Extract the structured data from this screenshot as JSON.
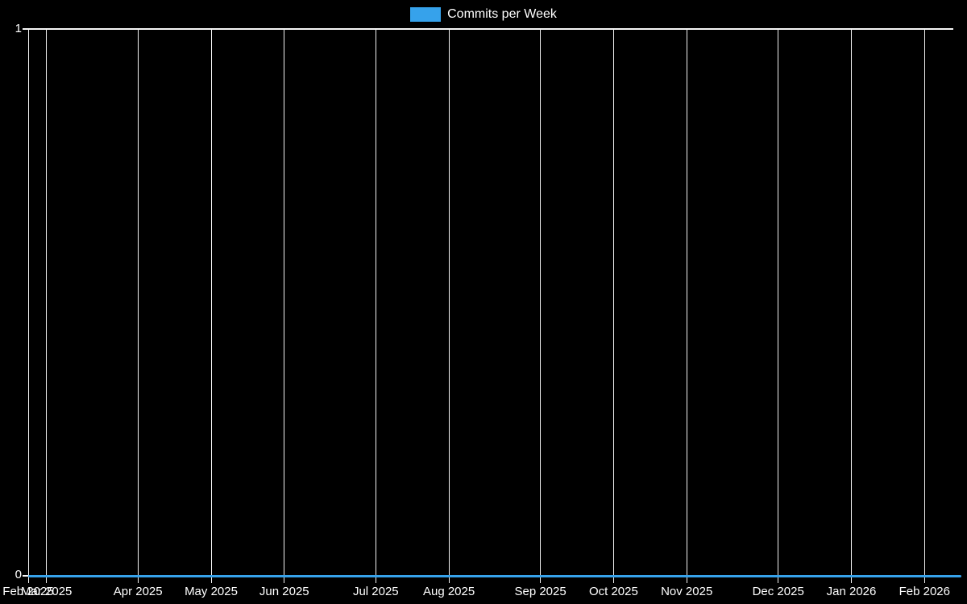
{
  "legend": {
    "items": [
      {
        "label": "Commits per Week",
        "color": "#36a2eb"
      }
    ]
  },
  "y_axis": {
    "ticks": [
      {
        "label": "1",
        "value": 1
      },
      {
        "label": "0",
        "value": 0
      }
    ]
  },
  "x_axis": {
    "ticks": [
      {
        "label": "Feb 2025",
        "week": 0
      },
      {
        "label": "Mar 2025",
        "week": 1
      },
      {
        "label": "Apr 2025",
        "week": 6
      },
      {
        "label": "May 2025",
        "week": 10
      },
      {
        "label": "Jun 2025",
        "week": 14
      },
      {
        "label": "Jul 2025",
        "week": 19
      },
      {
        "label": "Aug 2025",
        "week": 23
      },
      {
        "label": "Sep 2025",
        "week": 28
      },
      {
        "label": "Oct 2025",
        "week": 32
      },
      {
        "label": "Nov 2025",
        "week": 36
      },
      {
        "label": "Dec 2025",
        "week": 41
      },
      {
        "label": "Jan 2026",
        "week": 45
      },
      {
        "label": "Feb 2026",
        "week": 49
      }
    ]
  },
  "chart_data": {
    "type": "line",
    "title": "Commits per Week",
    "x_unit": "week",
    "x_range": [
      "Feb 2025",
      "Feb 2026"
    ],
    "x_tick_labels": [
      "Feb 2025",
      "Mar 2025",
      "Apr 2025",
      "May 2025",
      "Jun 2025",
      "Jul 2025",
      "Aug 2025",
      "Sep 2025",
      "Oct 2025",
      "Nov 2025",
      "Dec 2025",
      "Jan 2026",
      "Feb 2026"
    ],
    "ylim": [
      0,
      1
    ],
    "y_tick_labels": [
      "0",
      "1"
    ],
    "grid": true,
    "legend_position": "top",
    "background": "#000000",
    "series": [
      {
        "name": "Commits per Week",
        "color": "#36a2eb",
        "values": [
          0,
          0,
          0,
          0,
          0,
          0,
          0,
          0,
          0,
          0,
          0,
          0,
          0,
          0,
          0,
          0,
          0,
          0,
          0,
          0,
          0,
          0,
          0,
          0,
          0,
          0,
          0,
          0,
          0,
          0,
          0,
          0,
          0,
          0,
          0,
          0,
          0,
          0,
          0,
          0,
          0,
          0,
          0,
          0,
          0,
          0,
          0,
          0,
          0,
          0,
          0,
          0
        ]
      }
    ]
  },
  "colors": {
    "background": "#000000",
    "grid": "#f2f2f2",
    "text": "#ffffff",
    "accent": "#36a2eb"
  }
}
